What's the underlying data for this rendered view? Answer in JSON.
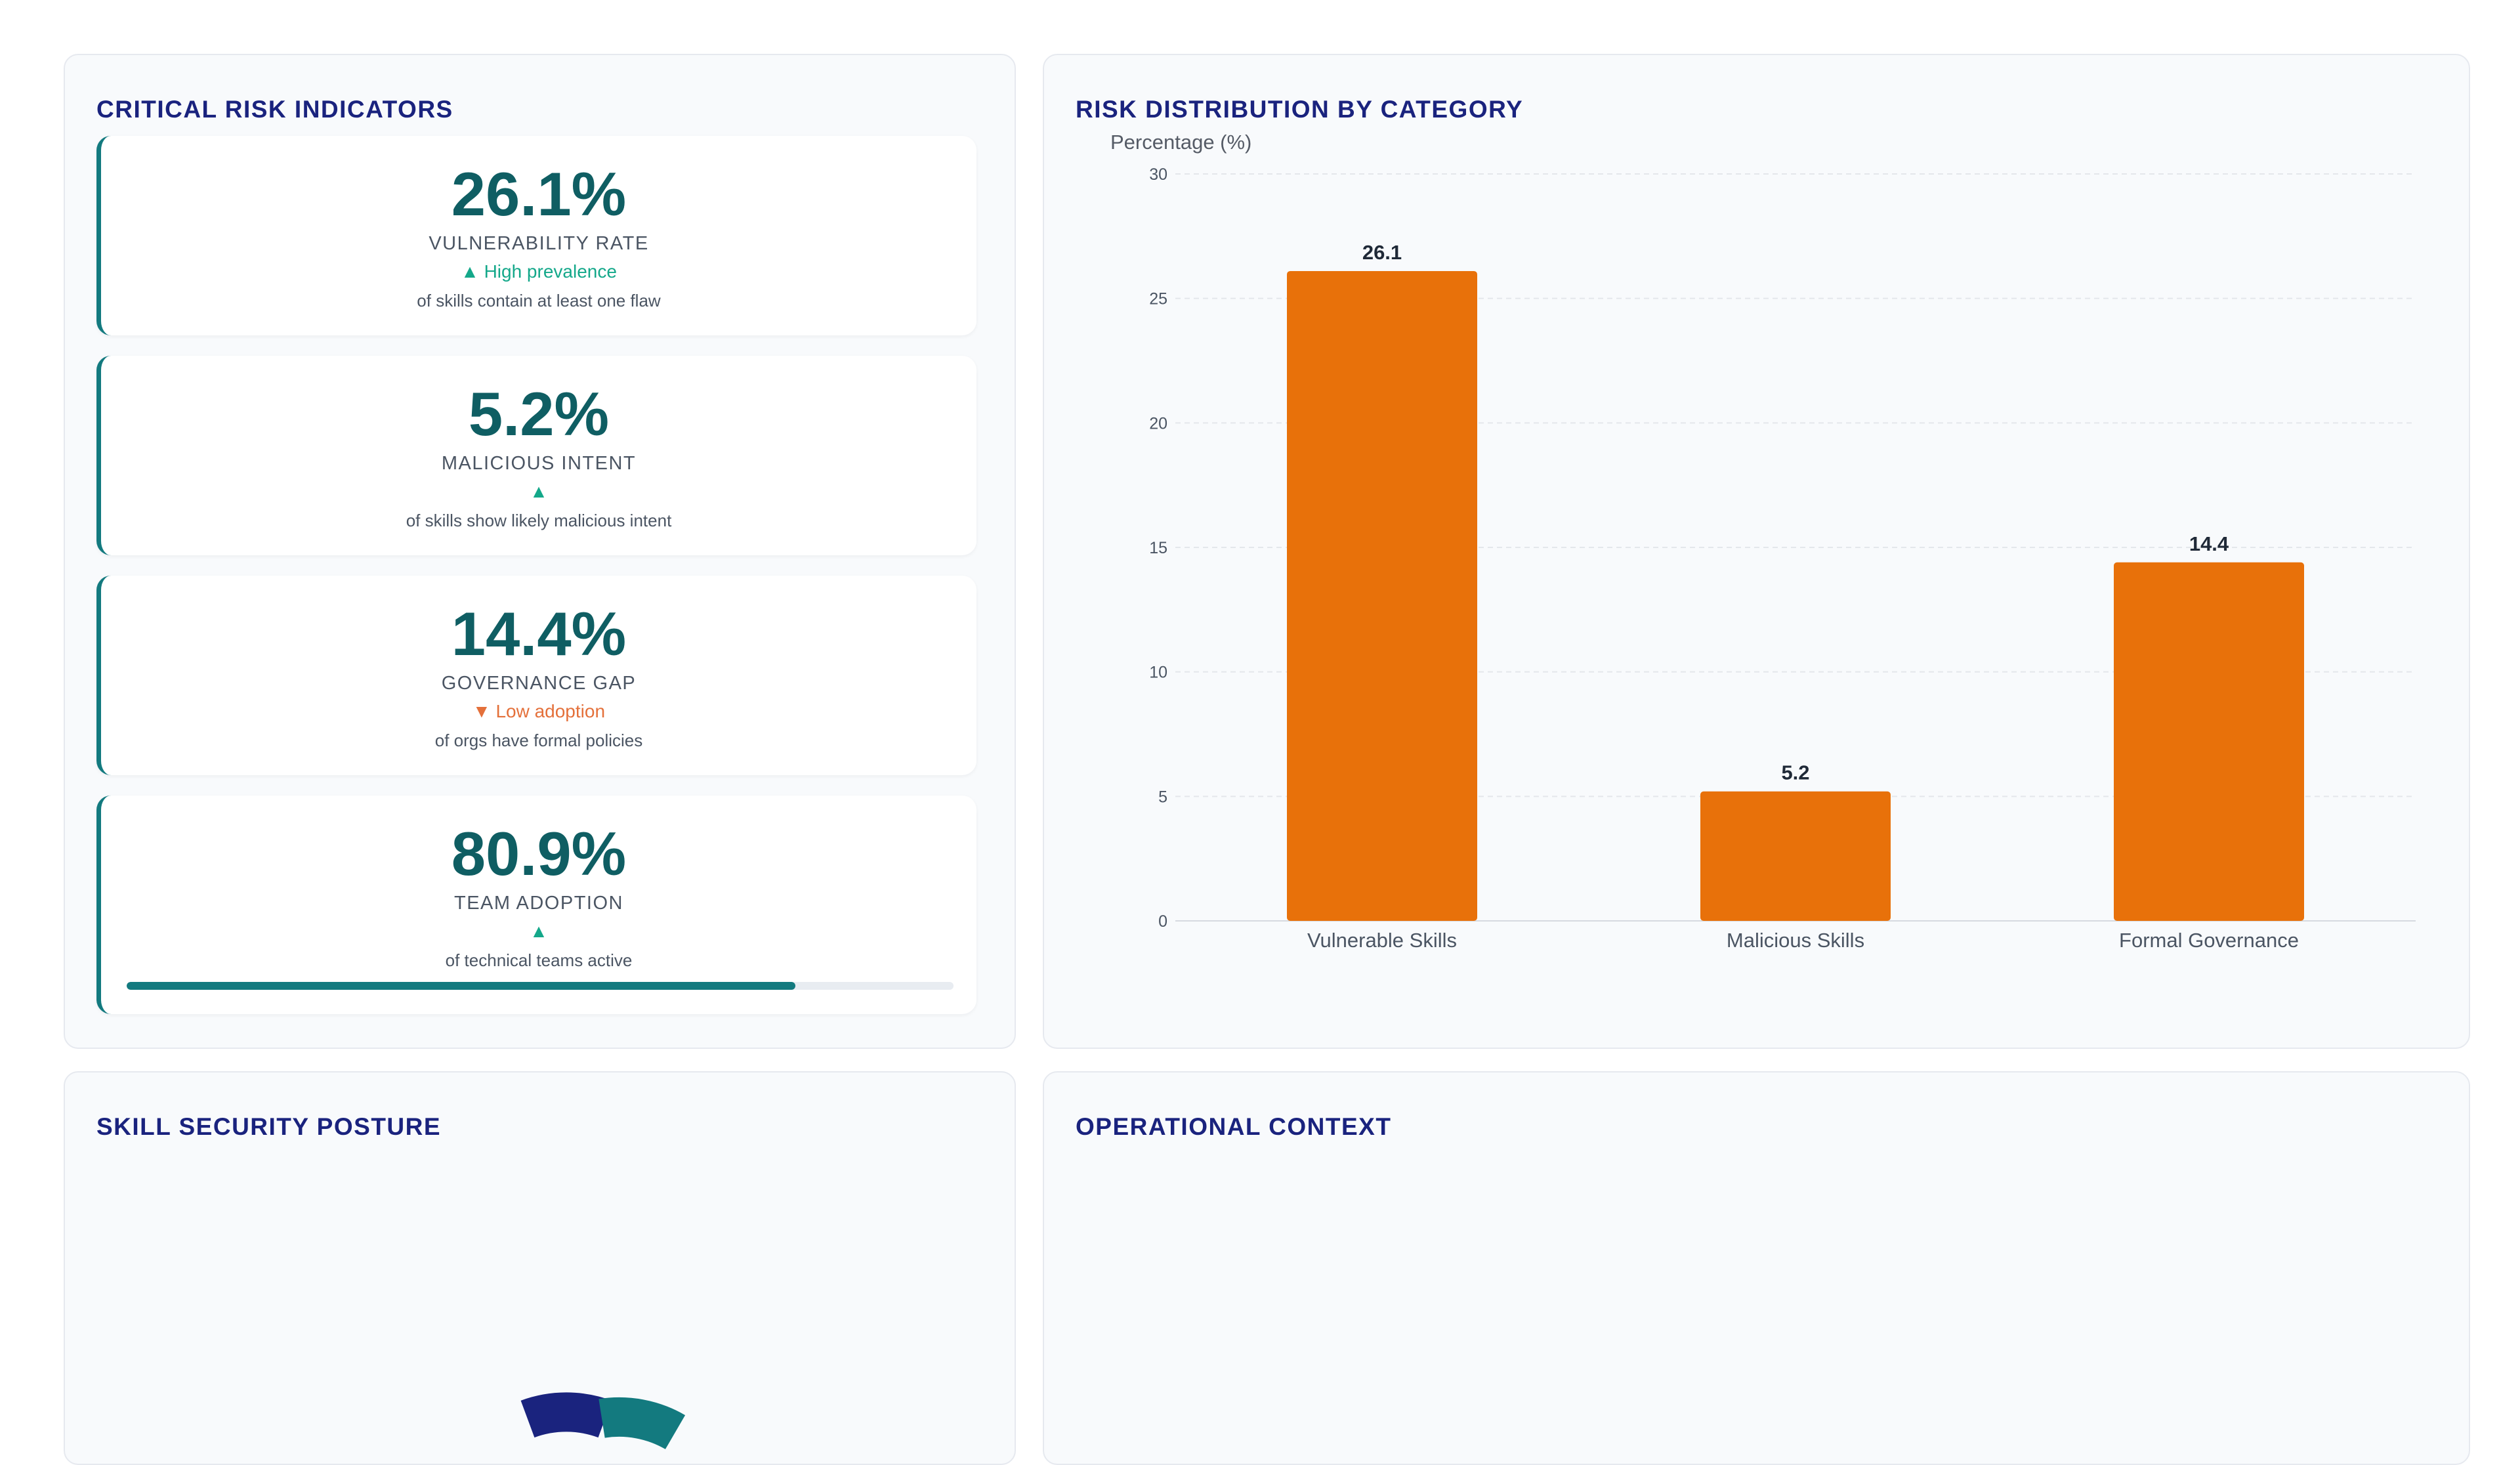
{
  "panels": {
    "kpi_title": "CRITICAL RISK INDICATORS",
    "chart_title": "RISK DISTRIBUTION BY CATEGORY",
    "posture_title": "SKILL SECURITY POSTURE",
    "context_title": "OPERATIONAL CONTEXT"
  },
  "kpis": [
    {
      "value": "26.1%",
      "label": "VULNERABILITY RATE",
      "trend": "▲ High prevalence",
      "trend_dir": "up",
      "sub": "of skills contain at least one flaw"
    },
    {
      "value": "5.2%",
      "label": "MALICIOUS INTENT",
      "trend": "▲",
      "trend_dir": "up",
      "sub": "of skills show likely malicious intent"
    },
    {
      "value": "14.4%",
      "label": "GOVERNANCE GAP",
      "trend": "▼ Low adoption",
      "trend_dir": "down",
      "sub": "of orgs have formal policies"
    },
    {
      "value": "80.9%",
      "label": "TEAM ADOPTION",
      "trend": "▲",
      "trend_dir": "up",
      "sub": "of technical teams active",
      "progress": 0.809
    }
  ],
  "colors": {
    "bar": "#e8710a",
    "teal": "#137a7f",
    "title": "#1a237e",
    "trend_up": "#14a88a",
    "trend_down": "#e4703a"
  },
  "chart_data": {
    "type": "bar",
    "categories": [
      "Vulnerable Skills",
      "Malicious Skills",
      "Formal Governance"
    ],
    "values": [
      26.1,
      5.2,
      14.4
    ],
    "value_labels": [
      "26.1",
      "5.2",
      "14.4"
    ],
    "title": "RISK DISTRIBUTION BY CATEGORY",
    "xlabel": "",
    "ylabel": "Percentage (%)",
    "ylim": [
      0,
      30
    ],
    "yticks": [
      0,
      5,
      10,
      15,
      20,
      25,
      30
    ],
    "grid": true,
    "legend": "none"
  }
}
